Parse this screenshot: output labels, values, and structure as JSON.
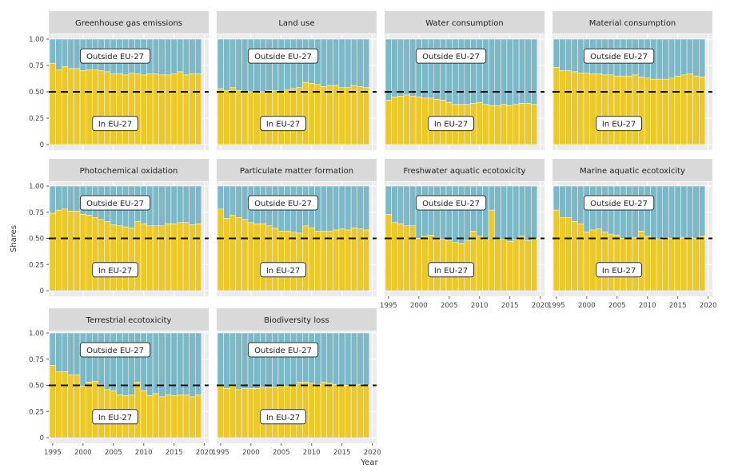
{
  "chart_data": {
    "type": "bar",
    "stacked": true,
    "normalized": true,
    "xlabel": "Year",
    "ylabel": "Shares",
    "ylim": [
      0,
      1
    ],
    "yticks": [
      0,
      0.25,
      0.5,
      0.75,
      1.0
    ],
    "ytick_labels": [
      "0",
      "0.25",
      "0.50",
      "0.75",
      "1.00"
    ],
    "xticks": [
      1995,
      2000,
      2005,
      2010,
      2015,
      2020
    ],
    "x": [
      1995,
      1996,
      1997,
      1998,
      1999,
      2000,
      2001,
      2002,
      2003,
      2004,
      2005,
      2006,
      2007,
      2008,
      2009,
      2010,
      2011,
      2012,
      2013,
      2014,
      2015,
      2016,
      2017,
      2018,
      2019
    ],
    "reference_line": {
      "y": 0.5,
      "style": "dashed",
      "color": "#111111"
    },
    "grid": true,
    "colors": {
      "in_eu": "#EBC92B",
      "outside_eu": "#7DB8C6",
      "panel_bg": "#EBEBEB",
      "strip_bg": "#D9D9D9"
    },
    "series_labels": {
      "outside": "Outside EU-27",
      "inside": "In EU-27"
    },
    "facets": [
      {
        "title": "Greenhouse gas emissions",
        "in_eu": [
          0.77,
          0.71,
          0.74,
          0.72,
          0.72,
          0.7,
          0.71,
          0.71,
          0.7,
          0.69,
          0.67,
          0.67,
          0.66,
          0.68,
          0.67,
          0.66,
          0.67,
          0.67,
          0.66,
          0.66,
          0.67,
          0.69,
          0.66,
          0.67,
          0.67
        ]
      },
      {
        "title": "Land use",
        "in_eu": [
          0.53,
          0.51,
          0.54,
          0.51,
          0.5,
          0.5,
          0.49,
          0.5,
          0.51,
          0.51,
          0.5,
          0.52,
          0.53,
          0.54,
          0.59,
          0.58,
          0.57,
          0.55,
          0.56,
          0.56,
          0.54,
          0.54,
          0.56,
          0.55,
          0.54
        ]
      },
      {
        "title": "Water consumption",
        "in_eu": [
          0.42,
          0.45,
          0.46,
          0.47,
          0.46,
          0.45,
          0.44,
          0.44,
          0.43,
          0.42,
          0.4,
          0.38,
          0.38,
          0.38,
          0.39,
          0.4,
          0.38,
          0.37,
          0.37,
          0.38,
          0.37,
          0.38,
          0.39,
          0.39,
          0.38
        ]
      },
      {
        "title": "Material consumption",
        "in_eu": [
          0.73,
          0.7,
          0.7,
          0.69,
          0.68,
          0.68,
          0.67,
          0.67,
          0.66,
          0.66,
          0.65,
          0.65,
          0.65,
          0.66,
          0.64,
          0.63,
          0.62,
          0.62,
          0.62,
          0.63,
          0.65,
          0.66,
          0.67,
          0.65,
          0.64
        ]
      },
      {
        "title": "Photochemical oxidation",
        "in_eu": [
          0.74,
          0.77,
          0.78,
          0.76,
          0.76,
          0.73,
          0.72,
          0.7,
          0.68,
          0.66,
          0.63,
          0.62,
          0.61,
          0.6,
          0.66,
          0.64,
          0.62,
          0.62,
          0.62,
          0.64,
          0.64,
          0.65,
          0.65,
          0.63,
          0.64
        ]
      },
      {
        "title": "Particulate matter formation",
        "in_eu": [
          0.78,
          0.69,
          0.72,
          0.7,
          0.68,
          0.65,
          0.64,
          0.64,
          0.62,
          0.6,
          0.57,
          0.57,
          0.56,
          0.55,
          0.62,
          0.6,
          0.57,
          0.57,
          0.57,
          0.58,
          0.59,
          0.58,
          0.6,
          0.59,
          0.58
        ]
      },
      {
        "title": "Freshwater aquatic ecotoxicity",
        "in_eu": [
          0.73,
          0.65,
          0.64,
          0.62,
          0.62,
          0.5,
          0.52,
          0.53,
          0.51,
          0.49,
          0.48,
          0.46,
          0.45,
          0.48,
          0.57,
          0.52,
          0.49,
          0.77,
          0.49,
          0.49,
          0.47,
          0.49,
          0.52,
          0.48,
          0.49
        ]
      },
      {
        "title": "Marine aquatic ecotoxicity",
        "in_eu": [
          0.77,
          0.7,
          0.7,
          0.66,
          0.64,
          0.56,
          0.58,
          0.59,
          0.56,
          0.54,
          0.53,
          0.5,
          0.5,
          0.51,
          0.57,
          0.52,
          0.5,
          0.49,
          0.51,
          0.5,
          0.5,
          0.51,
          0.51,
          0.5,
          0.52
        ]
      },
      {
        "title": "Terrestrial ecotoxicity",
        "in_eu": [
          0.69,
          0.63,
          0.63,
          0.6,
          0.6,
          0.49,
          0.53,
          0.54,
          0.51,
          0.46,
          0.45,
          0.41,
          0.4,
          0.41,
          0.53,
          0.45,
          0.4,
          0.42,
          0.39,
          0.41,
          0.4,
          0.41,
          0.41,
          0.39,
          0.41
        ]
      },
      {
        "title": "Biodiversity loss",
        "in_eu": [
          0.5,
          0.47,
          0.49,
          0.46,
          0.47,
          0.47,
          0.47,
          0.48,
          0.48,
          0.48,
          0.49,
          0.49,
          0.5,
          0.53,
          0.53,
          0.52,
          0.51,
          0.53,
          0.52,
          0.51,
          0.5,
          0.5,
          0.5,
          0.51,
          0.5
        ]
      }
    ]
  }
}
